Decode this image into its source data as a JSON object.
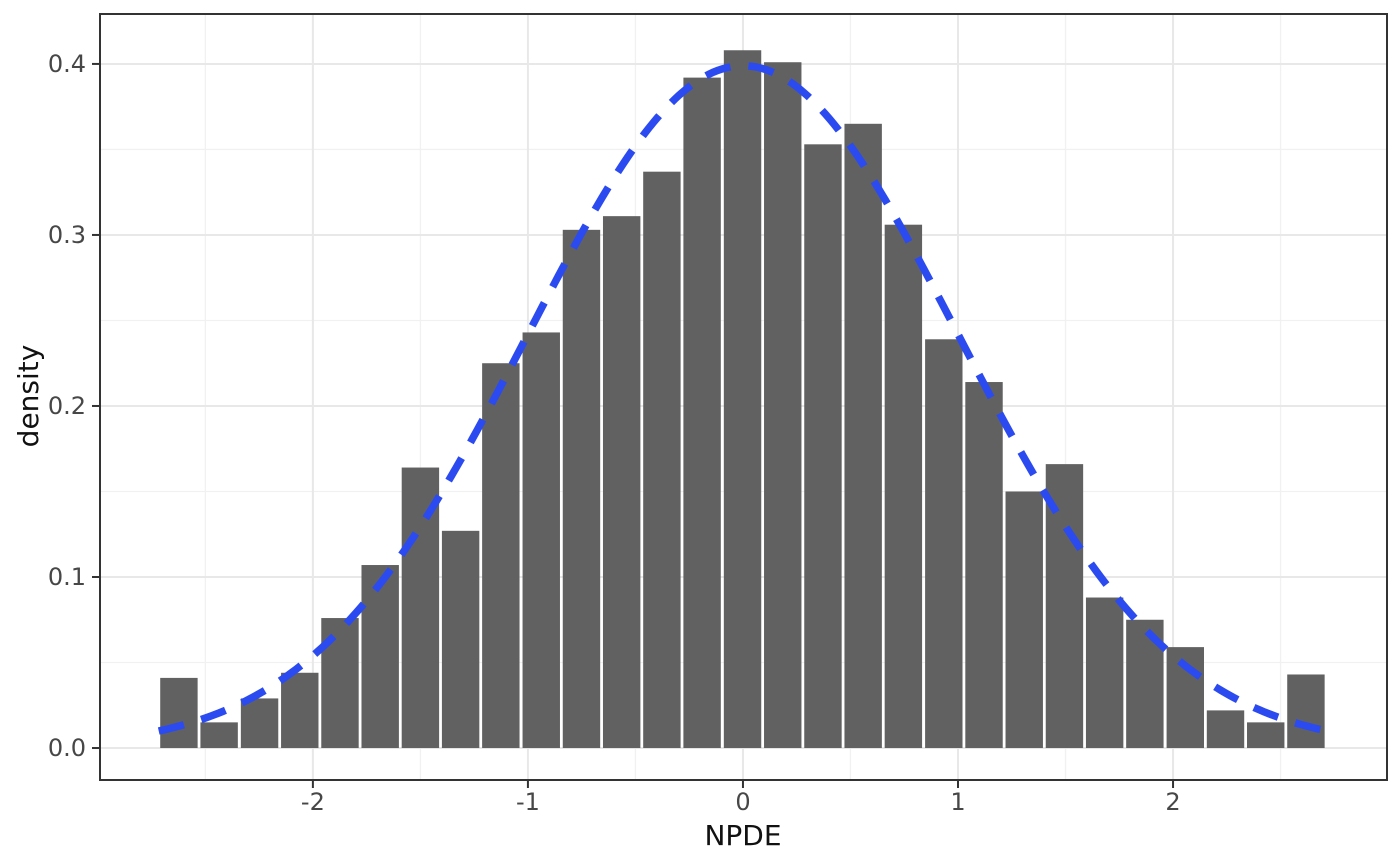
{
  "chart_data": {
    "type": "bar",
    "subtype": "histogram-with-density-curve",
    "title": "",
    "xlabel": "NPDE",
    "ylabel": "density",
    "xlim": [
      -2.99,
      2.995
    ],
    "ylim": [
      -0.0187,
      0.4292
    ],
    "x_ticks": [
      -2,
      -1,
      0,
      1,
      2
    ],
    "x_tick_labels": [
      "-2",
      "-1",
      "0",
      "1",
      "2"
    ],
    "x_minor_ticks": [
      -2.5,
      -1.5,
      -0.5,
      0.5,
      1.5,
      2.5
    ],
    "y_ticks": [
      0.0,
      0.1,
      0.2,
      0.3,
      0.4
    ],
    "y_tick_labels": [
      "0.0",
      "0.1",
      "0.2",
      "0.3",
      "0.4"
    ],
    "y_minor_ticks": [
      0.05,
      0.15,
      0.25,
      0.35
    ],
    "grid": true,
    "legend_position": "none",
    "binwidth": 0.187,
    "bin_centers": [
      -2.623,
      -2.436,
      -2.248,
      -2.061,
      -1.874,
      -1.687,
      -1.5,
      -1.313,
      -1.126,
      -0.938,
      -0.751,
      -0.564,
      -0.377,
      -0.19,
      -0.002,
      0.185,
      0.372,
      0.559,
      0.746,
      0.934,
      1.121,
      1.308,
      1.495,
      1.682,
      1.869,
      2.057,
      2.244,
      2.431,
      2.618
    ],
    "densities": [
      0.041,
      0.015,
      0.029,
      0.044,
      0.076,
      0.107,
      0.164,
      0.127,
      0.225,
      0.243,
      0.303,
      0.311,
      0.337,
      0.392,
      0.408,
      0.401,
      0.353,
      0.365,
      0.306,
      0.239,
      0.214,
      0.15,
      0.166,
      0.088,
      0.075,
      0.059,
      0.022,
      0.015,
      0.043
    ],
    "overlay_curve": {
      "name": "standard-normal-density",
      "distribution": "normal",
      "mean": 0,
      "sd": 1,
      "x_range": [
        -2.717,
        2.712
      ],
      "line_style": "dashed"
    },
    "colors": {
      "bar_fill": "#616161",
      "bar_gap": "#ffffff",
      "curve": "#2B4BF0",
      "grid_major": "#E8E8E8",
      "grid_minor": "#F1F1F1",
      "panel_border": "#333333",
      "tick_mark": "#333333",
      "tick_label": "#474747",
      "axis_title": "#111111",
      "panel_background": "#FFFFFF"
    }
  }
}
